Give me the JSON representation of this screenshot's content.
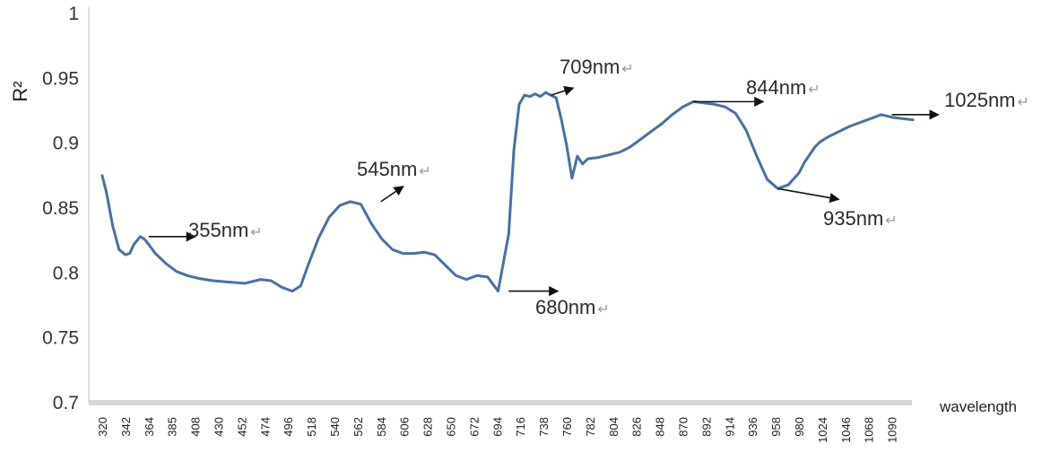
{
  "chart_data": {
    "type": "line",
    "title": "",
    "xlabel": "wavelength",
    "ylabel": "R²",
    "ylim": [
      0.7,
      1
    ],
    "y_ticks": [
      "0.7",
      "0.75",
      "0.8",
      "0.85",
      "0.9",
      "0.95",
      "1"
    ],
    "x_ticks": [
      "320",
      "342",
      "364",
      "385",
      "408",
      "430",
      "452",
      "474",
      "496",
      "518",
      "540",
      "562",
      "584",
      "606",
      "628",
      "650",
      "672",
      "694",
      "716",
      "738",
      "760",
      "782",
      "804",
      "826",
      "848",
      "870",
      "892",
      "914",
      "936",
      "958",
      "980",
      "1024",
      "1046",
      "1068",
      "1090"
    ],
    "grid": false,
    "legend": "none",
    "line_color": "#4a6fa5",
    "series": [
      {
        "x": [
          320,
          324,
          330,
          336,
          342,
          346,
          350,
          356,
          360,
          364,
          370,
          380,
          390,
          400,
          410,
          425,
          440,
          455,
          470,
          480,
          490,
          500,
          508,
          515,
          525,
          535,
          545,
          555,
          565,
          575,
          585,
          595,
          605,
          615,
          625,
          635,
          645,
          655,
          665,
          675,
          685,
          695,
          705,
          710,
          715,
          720,
          725,
          730,
          735,
          740,
          745,
          750,
          755,
          760,
          765,
          770,
          775,
          780,
          790,
          800,
          810,
          820,
          830,
          840,
          850,
          860,
          870,
          880,
          890,
          900,
          910,
          920,
          930,
          940,
          950,
          960,
          970,
          980,
          990,
          1000,
          1010,
          1020,
          1030,
          1040,
          1050,
          1060,
          1070,
          1080,
          1090,
          1100,
          1110
        ],
        "y": [
          0.875,
          0.862,
          0.836,
          0.818,
          0.814,
          0.815,
          0.822,
          0.828,
          0.826,
          0.822,
          0.815,
          0.807,
          0.801,
          0.798,
          0.796,
          0.794,
          0.793,
          0.792,
          0.795,
          0.794,
          0.789,
          0.786,
          0.79,
          0.806,
          0.827,
          0.843,
          0.852,
          0.855,
          0.853,
          0.838,
          0.826,
          0.818,
          0.815,
          0.815,
          0.816,
          0.814,
          0.806,
          0.798,
          0.795,
          0.798,
          0.797,
          0.786,
          0.83,
          0.895,
          0.93,
          0.937,
          0.936,
          0.938,
          0.936,
          0.939,
          0.937,
          0.935,
          0.918,
          0.898,
          0.873,
          0.89,
          0.884,
          0.888,
          0.889,
          0.891,
          0.893,
          0.897,
          0.903,
          0.909,
          0.915,
          0.922,
          0.928,
          0.932,
          0.931,
          0.93,
          0.928,
          0.923,
          0.91,
          0.89,
          0.872,
          0.865,
          0.868,
          0.877,
          0.885,
          0.891,
          0.897,
          0.901,
          0.905,
          0.909,
          0.913,
          0.916,
          0.919,
          0.922,
          0.92,
          0.919,
          0.918
        ]
      }
    ],
    "annotations": [
      {
        "label": "355nm",
        "x": 364,
        "y": 0.828
      },
      {
        "label": "545nm",
        "x": 584,
        "y": 0.855
      },
      {
        "label": "680nm",
        "x": 705,
        "y": 0.786
      },
      {
        "label": "709nm",
        "x": 745,
        "y": 0.937
      },
      {
        "label": "844nm",
        "x": 880,
        "y": 0.932
      },
      {
        "label": "935nm",
        "x": 960,
        "y": 0.865
      },
      {
        "label": "1025nm",
        "x": 1090,
        "y": 0.922
      }
    ]
  }
}
